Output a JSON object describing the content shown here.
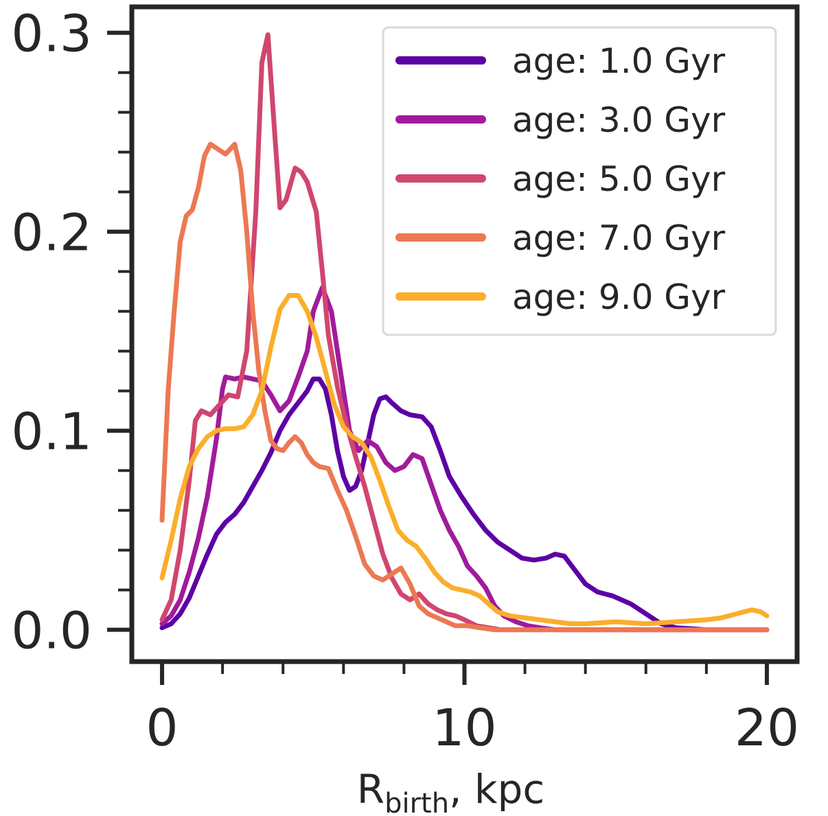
{
  "chart_data": {
    "type": "line",
    "title": "",
    "xlabel": "R",
    "xlabel_sub": "birth",
    "xlabel_unit": ", kpc",
    "ylabel": "",
    "xlim": [
      -1,
      21
    ],
    "ylim": [
      -0.016,
      0.313
    ],
    "xticks": [
      0,
      10,
      20
    ],
    "xtick_labels": [
      "0",
      "10",
      "20"
    ],
    "yticks": [
      0.0,
      0.1,
      0.2,
      0.3
    ],
    "ytick_labels": [
      "0.0",
      "0.1",
      "0.2",
      "0.3"
    ],
    "minor_xticks": [
      2,
      4,
      6,
      8,
      12,
      14,
      16,
      18
    ],
    "minor_yticks": [
      0.02,
      0.04,
      0.06,
      0.08,
      0.12,
      0.14,
      0.16,
      0.18,
      0.22,
      0.24,
      0.26,
      0.28
    ],
    "grid": false,
    "legend": "top-right",
    "series": [
      {
        "name": "age: 1.0 Gyr",
        "color": "#5c02a4",
        "points": [
          [
            0,
            0.001
          ],
          [
            0.3,
            0.003
          ],
          [
            0.6,
            0.008
          ],
          [
            0.9,
            0.016
          ],
          [
            1.2,
            0.027
          ],
          [
            1.5,
            0.038
          ],
          [
            1.8,
            0.048
          ],
          [
            2.1,
            0.054
          ],
          [
            2.4,
            0.058
          ],
          [
            2.7,
            0.064
          ],
          [
            3.0,
            0.072
          ],
          [
            3.3,
            0.08
          ],
          [
            3.6,
            0.089
          ],
          [
            3.9,
            0.1
          ],
          [
            4.2,
            0.108
          ],
          [
            4.5,
            0.114
          ],
          [
            4.8,
            0.12
          ],
          [
            5.0,
            0.126
          ],
          [
            5.2,
            0.126
          ],
          [
            5.4,
            0.121
          ],
          [
            5.6,
            0.108
          ],
          [
            5.8,
            0.09
          ],
          [
            6.0,
            0.077
          ],
          [
            6.2,
            0.07
          ],
          [
            6.4,
            0.072
          ],
          [
            6.6,
            0.08
          ],
          [
            6.8,
            0.094
          ],
          [
            7.0,
            0.108
          ],
          [
            7.2,
            0.116
          ],
          [
            7.4,
            0.117
          ],
          [
            7.6,
            0.114
          ],
          [
            7.9,
            0.11
          ],
          [
            8.2,
            0.108
          ],
          [
            8.6,
            0.107
          ],
          [
            8.9,
            0.102
          ],
          [
            9.2,
            0.09
          ],
          [
            9.5,
            0.077
          ],
          [
            9.9,
            0.067
          ],
          [
            10.3,
            0.058
          ],
          [
            10.7,
            0.05
          ],
          [
            11.1,
            0.044
          ],
          [
            11.5,
            0.04
          ],
          [
            11.9,
            0.036
          ],
          [
            12.3,
            0.035
          ],
          [
            12.7,
            0.036
          ],
          [
            13.0,
            0.038
          ],
          [
            13.3,
            0.037
          ],
          [
            13.6,
            0.031
          ],
          [
            14.0,
            0.023
          ],
          [
            14.4,
            0.019
          ],
          [
            14.9,
            0.017
          ],
          [
            15.5,
            0.013
          ],
          [
            16.0,
            0.008
          ],
          [
            16.5,
            0.003
          ],
          [
            17.0,
            0.001
          ],
          [
            18.0,
            0.0
          ],
          [
            20.0,
            0.0
          ]
        ]
      },
      {
        "name": "age: 3.0 Gyr",
        "color": "#a11b9b",
        "points": [
          [
            0,
            0.003
          ],
          [
            0.3,
            0.007
          ],
          [
            0.6,
            0.015
          ],
          [
            0.9,
            0.029
          ],
          [
            1.2,
            0.046
          ],
          [
            1.5,
            0.067
          ],
          [
            1.8,
            0.096
          ],
          [
            2.0,
            0.121
          ],
          [
            2.1,
            0.127
          ],
          [
            2.4,
            0.126
          ],
          [
            2.7,
            0.127
          ],
          [
            3.0,
            0.126
          ],
          [
            3.3,
            0.125
          ],
          [
            3.6,
            0.118
          ],
          [
            3.9,
            0.11
          ],
          [
            4.2,
            0.115
          ],
          [
            4.5,
            0.127
          ],
          [
            4.8,
            0.14
          ],
          [
            5.0,
            0.16
          ],
          [
            5.3,
            0.172
          ],
          [
            5.6,
            0.16
          ],
          [
            5.9,
            0.13
          ],
          [
            6.2,
            0.1
          ],
          [
            6.5,
            0.09
          ],
          [
            6.8,
            0.095
          ],
          [
            7.1,
            0.092
          ],
          [
            7.4,
            0.084
          ],
          [
            7.7,
            0.08
          ],
          [
            8.0,
            0.082
          ],
          [
            8.3,
            0.088
          ],
          [
            8.6,
            0.086
          ],
          [
            8.9,
            0.073
          ],
          [
            9.2,
            0.06
          ],
          [
            9.5,
            0.05
          ],
          [
            9.8,
            0.042
          ],
          [
            10.1,
            0.032
          ],
          [
            10.4,
            0.027
          ],
          [
            10.7,
            0.021
          ],
          [
            11.0,
            0.012
          ],
          [
            11.3,
            0.007
          ],
          [
            11.7,
            0.004
          ],
          [
            12.1,
            0.002
          ],
          [
            12.5,
            0.001
          ],
          [
            13.0,
            0.0
          ],
          [
            20.0,
            0.0
          ]
        ]
      },
      {
        "name": "age: 5.0 Gyr",
        "color": "#d0466e",
        "points": [
          [
            0,
            0.005
          ],
          [
            0.3,
            0.015
          ],
          [
            0.6,
            0.04
          ],
          [
            0.9,
            0.075
          ],
          [
            1.1,
            0.105
          ],
          [
            1.3,
            0.11
          ],
          [
            1.6,
            0.108
          ],
          [
            1.9,
            0.113
          ],
          [
            2.2,
            0.118
          ],
          [
            2.5,
            0.117
          ],
          [
            2.8,
            0.14
          ],
          [
            3.1,
            0.21
          ],
          [
            3.3,
            0.285
          ],
          [
            3.5,
            0.299
          ],
          [
            3.7,
            0.255
          ],
          [
            3.9,
            0.212
          ],
          [
            4.1,
            0.216
          ],
          [
            4.4,
            0.232
          ],
          [
            4.6,
            0.23
          ],
          [
            4.8,
            0.225
          ],
          [
            5.1,
            0.21
          ],
          [
            5.3,
            0.18
          ],
          [
            5.5,
            0.148
          ],
          [
            5.8,
            0.122
          ],
          [
            6.1,
            0.103
          ],
          [
            6.4,
            0.087
          ],
          [
            6.7,
            0.072
          ],
          [
            7.0,
            0.055
          ],
          [
            7.3,
            0.038
          ],
          [
            7.6,
            0.026
          ],
          [
            7.9,
            0.018
          ],
          [
            8.2,
            0.015
          ],
          [
            8.5,
            0.018
          ],
          [
            8.8,
            0.013
          ],
          [
            9.1,
            0.01
          ],
          [
            9.4,
            0.008
          ],
          [
            9.7,
            0.007
          ],
          [
            10.0,
            0.005
          ],
          [
            10.4,
            0.002
          ],
          [
            10.8,
            0.001
          ],
          [
            11.2,
            0.0
          ],
          [
            20.0,
            0.0
          ]
        ]
      },
      {
        "name": "age: 7.0 Gyr",
        "color": "#ec7853",
        "points": [
          [
            0,
            0.055
          ],
          [
            0.2,
            0.12
          ],
          [
            0.4,
            0.16
          ],
          [
            0.6,
            0.195
          ],
          [
            0.8,
            0.208
          ],
          [
            1.0,
            0.211
          ],
          [
            1.2,
            0.222
          ],
          [
            1.4,
            0.238
          ],
          [
            1.6,
            0.244
          ],
          [
            1.9,
            0.241
          ],
          [
            2.1,
            0.239
          ],
          [
            2.4,
            0.244
          ],
          [
            2.6,
            0.231
          ],
          [
            2.8,
            0.2
          ],
          [
            3.0,
            0.16
          ],
          [
            3.2,
            0.13
          ],
          [
            3.4,
            0.11
          ],
          [
            3.6,
            0.095
          ],
          [
            3.8,
            0.091
          ],
          [
            4.0,
            0.09
          ],
          [
            4.2,
            0.094
          ],
          [
            4.4,
            0.097
          ],
          [
            4.6,
            0.094
          ],
          [
            4.8,
            0.088
          ],
          [
            5.0,
            0.084
          ],
          [
            5.2,
            0.082
          ],
          [
            5.5,
            0.081
          ],
          [
            5.8,
            0.07
          ],
          [
            6.1,
            0.06
          ],
          [
            6.4,
            0.047
          ],
          [
            6.7,
            0.033
          ],
          [
            7.0,
            0.027
          ],
          [
            7.3,
            0.025
          ],
          [
            7.6,
            0.028
          ],
          [
            7.9,
            0.031
          ],
          [
            8.2,
            0.023
          ],
          [
            8.5,
            0.012
          ],
          [
            8.8,
            0.008
          ],
          [
            9.1,
            0.006
          ],
          [
            9.4,
            0.004
          ],
          [
            9.7,
            0.002
          ],
          [
            10.1,
            0.002
          ],
          [
            10.5,
            0.001
          ],
          [
            11.0,
            0.0
          ],
          [
            20.0,
            0.0
          ]
        ]
      },
      {
        "name": "age: 9.0 Gyr",
        "color": "#fbae2b",
        "points": [
          [
            0,
            0.026
          ],
          [
            0.3,
            0.045
          ],
          [
            0.6,
            0.066
          ],
          [
            0.9,
            0.082
          ],
          [
            1.2,
            0.091
          ],
          [
            1.5,
            0.097
          ],
          [
            1.8,
            0.1
          ],
          [
            2.1,
            0.101
          ],
          [
            2.4,
            0.101
          ],
          [
            2.7,
            0.102
          ],
          [
            3.0,
            0.108
          ],
          [
            3.3,
            0.12
          ],
          [
            3.6,
            0.142
          ],
          [
            3.9,
            0.161
          ],
          [
            4.2,
            0.168
          ],
          [
            4.5,
            0.168
          ],
          [
            4.8,
            0.16
          ],
          [
            5.1,
            0.147
          ],
          [
            5.4,
            0.13
          ],
          [
            5.7,
            0.113
          ],
          [
            6.0,
            0.102
          ],
          [
            6.3,
            0.097
          ],
          [
            6.6,
            0.094
          ],
          [
            6.9,
            0.087
          ],
          [
            7.2,
            0.075
          ],
          [
            7.5,
            0.062
          ],
          [
            7.8,
            0.05
          ],
          [
            8.1,
            0.045
          ],
          [
            8.4,
            0.042
          ],
          [
            8.7,
            0.036
          ],
          [
            9.0,
            0.029
          ],
          [
            9.3,
            0.024
          ],
          [
            9.6,
            0.021
          ],
          [
            9.9,
            0.02
          ],
          [
            10.2,
            0.019
          ],
          [
            10.5,
            0.017
          ],
          [
            10.8,
            0.013
          ],
          [
            11.1,
            0.009
          ],
          [
            11.5,
            0.007
          ],
          [
            12.0,
            0.006
          ],
          [
            12.5,
            0.005
          ],
          [
            13.0,
            0.004
          ],
          [
            13.5,
            0.003
          ],
          [
            14.0,
            0.003
          ],
          [
            15.0,
            0.004
          ],
          [
            16.0,
            0.003
          ],
          [
            17.0,
            0.004
          ],
          [
            18.0,
            0.005
          ],
          [
            18.5,
            0.006
          ],
          [
            19.0,
            0.008
          ],
          [
            19.5,
            0.01
          ],
          [
            19.8,
            0.009
          ],
          [
            20.0,
            0.007
          ]
        ]
      }
    ]
  }
}
